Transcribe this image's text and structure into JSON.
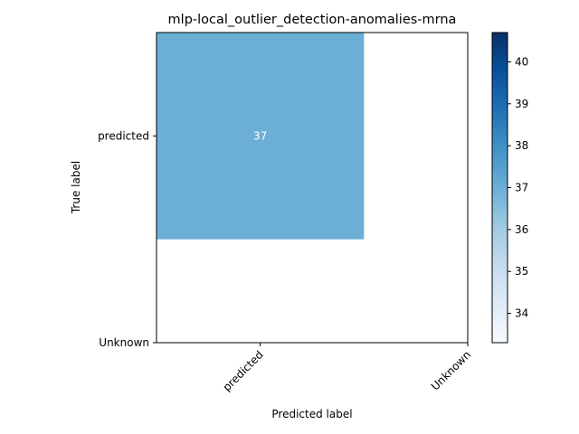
{
  "chart_data": {
    "type": "heatmap",
    "title": "mlp-local_outlier_detection-anomalies-mrna",
    "xlabel": "Predicted label",
    "ylabel": "True label",
    "x_categories": [
      "predicted",
      "Unknown"
    ],
    "y_categories": [
      "predicted",
      "Unknown"
    ],
    "cells": [
      {
        "row": "predicted",
        "col": "predicted",
        "value": 37,
        "label": "37"
      }
    ],
    "colorbar": {
      "min": 33.3,
      "max": 40.7,
      "ticks": [
        34,
        35,
        36,
        37,
        38,
        39,
        40
      ],
      "colormap": "Blues"
    },
    "colors": {
      "cell_fill": "#6baed6",
      "cell_label": "#ffffff",
      "cmap_low": "#f7fbff",
      "cmap_high": "#08306b"
    }
  }
}
